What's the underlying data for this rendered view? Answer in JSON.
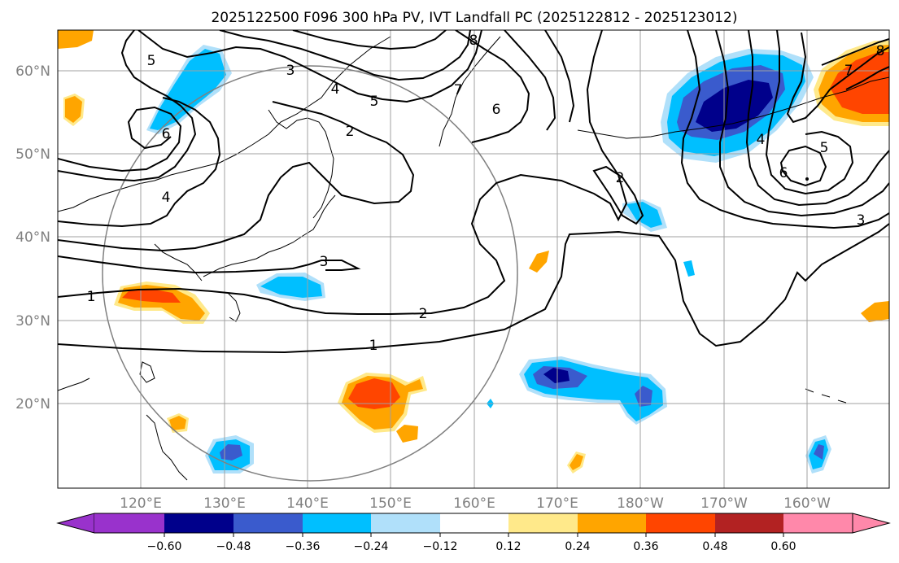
{
  "title": "2025122500 F096 300 hPa PV, IVT Landfall PC (2025122812 - 2025123012)",
  "map": {
    "lon_labels": [
      "120°E",
      "130°E",
      "140°E",
      "150°E",
      "160°E",
      "170°E",
      "180°W",
      "170°W",
      "160°W"
    ],
    "lat_labels": [
      "60°N",
      "50°N",
      "40°N",
      "30°N",
      "20°N"
    ],
    "contour_labels": [
      "1",
      "1",
      "2",
      "2",
      "2",
      "3",
      "3",
      "3",
      "4",
      "4",
      "4",
      "5",
      "5",
      "5",
      "6",
      "6",
      "6",
      "7",
      "7",
      "8",
      "8"
    ],
    "circle_color": "#808080",
    "contour_color": "#000000"
  },
  "colorbar": {
    "tick_labels": [
      "−0.60",
      "−0.48",
      "−0.36",
      "−0.24",
      "−0.12",
      "0.12",
      "0.24",
      "0.36",
      "0.48",
      "0.60"
    ],
    "under_color": "#9932cc",
    "over_color": "#ff88aa",
    "colors": [
      "#00008b",
      "#3a5bcd",
      "#00bfff",
      "#b0e0fa",
      "#ffffff",
      "#ffe98a",
      "#ffa500",
      "#ff4500",
      "#b22222"
    ]
  }
}
